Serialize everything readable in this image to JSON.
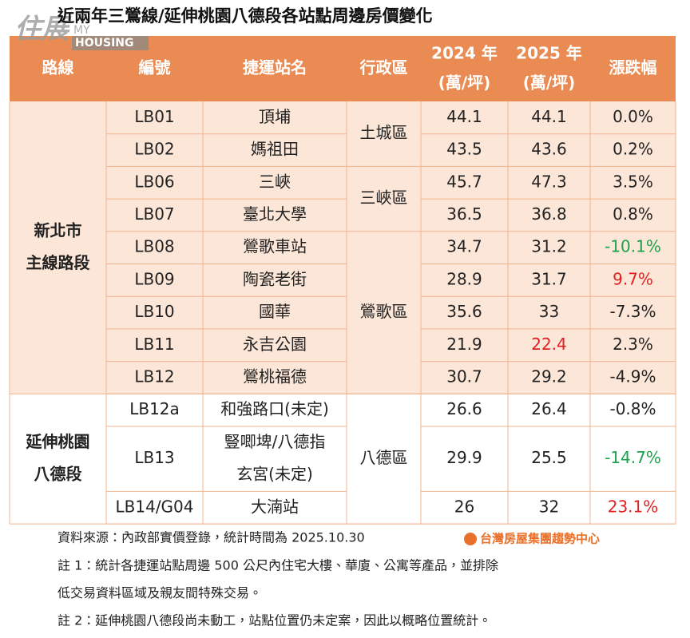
{
  "watermark": {
    "main": "住展",
    "my": "MY",
    "housing": "HOUSING"
  },
  "title": "近兩年三鶯線/延伸桃園八德段各站點周邊房價變化",
  "colors": {
    "header_bg": "#e98b52",
    "border": "#f2b48e",
    "text": "#222222",
    "up": "#e02020",
    "down": "#1aa34a"
  },
  "table": {
    "header": [
      "路線",
      "編號",
      "捷運站名",
      "行政區",
      [
        "2024 年",
        "(萬/坪)"
      ],
      [
        "2025 年",
        "(萬/坪)"
      ],
      "漲跌幅"
    ],
    "sections": [
      {
        "name": [
          "新北市",
          "主線路段"
        ],
        "bg": "#fce6d8",
        "districts": [
          {
            "name": "土城區",
            "rows": [
              {
                "code": "LB01",
                "station": [
                  "頂埔"
                ],
                "y2024": 44.1,
                "y2025": 44.1,
                "change": "0.0%"
              },
              {
                "code": "LB02",
                "station": [
                  "媽祖田"
                ],
                "y2024": 43.5,
                "y2025": 43.6,
                "change": "0.2%"
              }
            ]
          },
          {
            "name": "三峽區",
            "rows": [
              {
                "code": "LB06",
                "station": [
                  "三峽"
                ],
                "y2024": 45.7,
                "y2025": 47.3,
                "change": "3.5%"
              },
              {
                "code": "LB07",
                "station": [
                  "臺北大學"
                ],
                "y2024": 36.5,
                "y2025": 36.8,
                "change": "0.8%"
              }
            ]
          },
          {
            "name": "鶯歌區",
            "rows": [
              {
                "code": "LB08",
                "station": [
                  "鶯歌車站"
                ],
                "y2024": 34.7,
                "y2025": 31.2,
                "change": "-10.1%",
                "change_color": "down"
              },
              {
                "code": "LB09",
                "station": [
                  "陶瓷老街"
                ],
                "y2024": 28.9,
                "y2025": 31.7,
                "change": "9.7%",
                "change_color": "up"
              },
              {
                "code": "LB10",
                "station": [
                  "國華"
                ],
                "y2024": 35.6,
                "y2025": 33,
                "change": "-7.3%"
              },
              {
                "code": "LB11",
                "station": [
                  "永吉公園"
                ],
                "y2024": 21.9,
                "y2025": 22.4,
                "change": "2.3%",
                "y2025_color": "up"
              },
              {
                "code": "LB12",
                "station": [
                  "鶯桃福德"
                ],
                "y2024": 30.7,
                "y2025": 29.2,
                "change": "-4.9%"
              }
            ]
          }
        ]
      },
      {
        "name": [
          "延伸桃園",
          "八德段"
        ],
        "bg": "#ffffff",
        "districts": [
          {
            "name": "八德區",
            "rows": [
              {
                "code": "LB12a",
                "station": [
                  "和強路口(未定)"
                ],
                "y2024": 26.6,
                "y2025": 26.4,
                "change": "-0.8%"
              },
              {
                "code": "LB13",
                "station": [
                  "豎唧埤/八德指",
                  "玄宮(未定)"
                ],
                "y2024": 29.9,
                "y2025": 25.5,
                "change": "-14.7%",
                "change_color": "down"
              },
              {
                "code": "LB14/G04",
                "station": [
                  "大湳站"
                ],
                "y2024": 26,
                "y2025": 32,
                "change": "23.1%",
                "change_color": "up"
              }
            ]
          }
        ]
      }
    ]
  },
  "footer": {
    "source": "資料來源：內政部實價登錄，統計時間為 2025.10.30",
    "logo": "台灣房屋集團趨勢中心",
    "notes": [
      [
        "註 1：統計各捷運站點周邊 500 公尺內住宅大樓、華廈、公寓等產品，並排除",
        "低交易資料區域及親友間特殊交易。"
      ],
      [
        "註 2：延伸桃園八德段尚未動工，站點位置仍未定案，因此以概略位置統計。"
      ]
    ]
  }
}
